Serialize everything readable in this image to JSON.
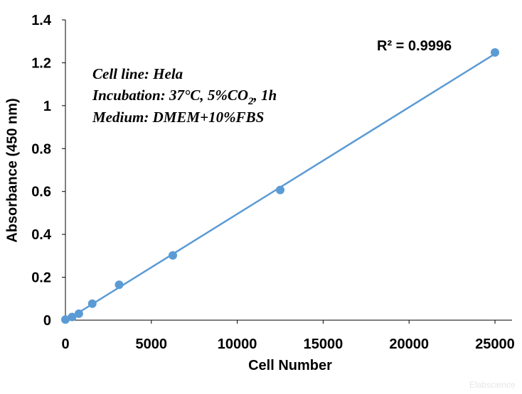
{
  "chart_data": {
    "type": "scatter",
    "x_label": "Cell Number",
    "y_label": "Absorbance (450 nm)",
    "xlim": [
      0,
      25000
    ],
    "xticks": [
      0,
      5000,
      10000,
      15000,
      20000,
      25000
    ],
    "ylim": [
      0,
      1.4
    ],
    "yticks": [
      0,
      0.2,
      0.4,
      0.6,
      0.8,
      1,
      1.2,
      1.4
    ],
    "series": [
      {
        "name": "Hela",
        "color": "#5b9bd5",
        "x": [
          0,
          390,
          781,
          1562,
          3125,
          6250,
          12500,
          25000
        ],
        "values": [
          0.003,
          0.015,
          0.03,
          0.077,
          0.165,
          0.302,
          0.607,
          1.248
        ]
      }
    ],
    "trendline": true,
    "r_squared_label": "R² = 0.9996",
    "annotation": {
      "line1": "Cell line: Hela",
      "line2_a": "Incubation: 37°C, 5%CO",
      "line2_sub": "2",
      "line2_b": ", 1h",
      "line3": "Medium: DMEM+10%FBS"
    },
    "watermark": "Elabscience"
  }
}
